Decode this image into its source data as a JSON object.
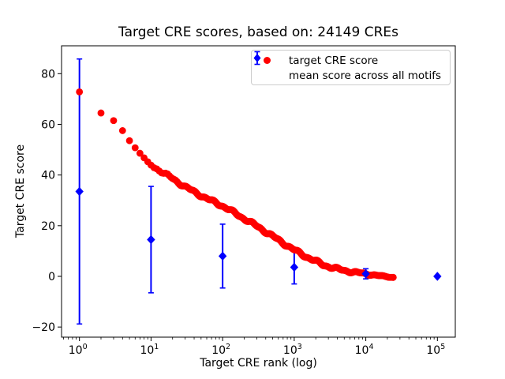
{
  "chart_data": {
    "type": "scatter",
    "title": "Target CRE scores, based on: 24149 CREs",
    "xlabel": "Target CRE rank (log)",
    "ylabel": "Target CRE score",
    "x_scale": "log10",
    "xlim_log10": [
      -0.25,
      5.25
    ],
    "ylim": [
      -24,
      91
    ],
    "x_tick_base": "10",
    "x_tick_exponents": [
      0,
      1,
      2,
      3,
      4,
      5
    ],
    "y_ticks": [
      -20,
      0,
      20,
      40,
      60,
      80
    ],
    "y_tick_labels": [
      "−20",
      "0",
      "20",
      "40",
      "60",
      "80"
    ],
    "grid": false,
    "legend_position": "upper right",
    "n_cres": 24149,
    "series": [
      {
        "name": "target CRE score",
        "color": "#ff0000",
        "marker": "circle",
        "n_points": 24149,
        "rank_range": [
          1,
          24149
        ],
        "anchors_log10rank_score": [
          [
            0.0,
            72.8
          ],
          [
            0.3,
            64.5
          ],
          [
            0.46,
            62.0
          ],
          [
            0.6,
            57.6
          ],
          [
            0.7,
            53.5
          ],
          [
            0.8,
            50.0
          ],
          [
            0.88,
            47.5
          ],
          [
            1.0,
            43.8
          ],
          [
            1.15,
            41.3
          ],
          [
            1.3,
            38.6
          ],
          [
            1.48,
            35.3
          ],
          [
            1.6,
            33.4
          ],
          [
            1.8,
            30.4
          ],
          [
            2.0,
            27.8
          ],
          [
            2.3,
            22.8
          ],
          [
            2.51,
            19.3
          ],
          [
            2.75,
            14.9
          ],
          [
            3.0,
            10.4
          ],
          [
            3.2,
            7.3
          ],
          [
            3.41,
            4.5
          ],
          [
            3.6,
            2.9
          ],
          [
            3.8,
            1.8
          ],
          [
            4.0,
            1.0
          ],
          [
            4.2,
            0.2
          ],
          [
            4.383,
            -0.4
          ]
        ]
      },
      {
        "name": "mean score across all motifs",
        "color": "#0000ff",
        "marker": "diamond",
        "points": [
          {
            "rank": 1,
            "mean": 33.5,
            "err": 52.3
          },
          {
            "rank": 10,
            "mean": 14.5,
            "err": 21.0
          },
          {
            "rank": 100,
            "mean": 8.0,
            "err": 12.6
          },
          {
            "rank": 1000,
            "mean": 3.6,
            "err": 6.6
          },
          {
            "rank": 10000,
            "mean": 1.0,
            "err": 2.0
          },
          {
            "rank": 100000,
            "mean": 0.0,
            "err": 0.0
          }
        ]
      }
    ]
  }
}
